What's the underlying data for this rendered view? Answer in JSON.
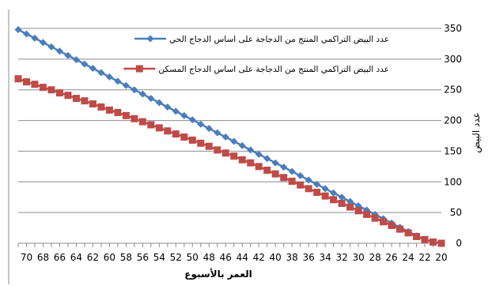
{
  "chart_data": {
    "type": "line",
    "xlabel": "العمر بالأسبوع",
    "ylabel": "عدد البيض",
    "x_axis_reversed": true,
    "y_axis_side": "right",
    "ylim": [
      0,
      350
    ],
    "yticks": [
      0,
      50,
      100,
      150,
      200,
      250,
      300,
      350
    ],
    "xlim": [
      20,
      71
    ],
    "xticks": [
      20,
      22,
      24,
      26,
      28,
      30,
      32,
      34,
      36,
      38,
      40,
      42,
      44,
      46,
      48,
      50,
      52,
      54,
      56,
      58,
      60,
      62,
      64,
      66,
      68,
      70
    ],
    "grid": "horizontal",
    "legend_position": "top-left",
    "x": [
      20,
      21,
      22,
      23,
      24,
      25,
      26,
      27,
      28,
      29,
      30,
      31,
      32,
      33,
      34,
      35,
      36,
      37,
      38,
      39,
      40,
      41,
      42,
      43,
      44,
      45,
      46,
      47,
      48,
      49,
      50,
      51,
      52,
      53,
      54,
      55,
      56,
      57,
      58,
      59,
      60,
      61,
      62,
      63,
      64,
      65,
      66,
      67,
      68,
      69,
      70,
      71
    ],
    "series": [
      {
        "name": "عدد البيض التراكمي المنتج من الدجاجة على اساس الدجاج الحي",
        "color": "#4A7EBB",
        "marker": "diamond",
        "values": [
          0,
          2,
          6,
          12,
          19,
          26,
          33,
          40,
          47,
          54,
          61,
          68,
          75,
          82,
          89,
          96,
          103,
          110,
          117,
          124,
          131,
          138,
          145,
          152,
          159,
          166,
          173,
          180,
          187,
          194,
          201,
          208,
          215,
          222,
          229,
          236,
          243,
          250,
          257,
          264,
          271,
          278,
          285,
          292,
          299,
          306,
          313,
          320,
          327,
          334,
          341,
          348
        ]
      },
      {
        "name": "عدد البيض التراكمي المنتج من الدجاجة على اساس الدجاج المسكن",
        "color": "#BE4B48",
        "marker": "square",
        "values": [
          0,
          2,
          6,
          11,
          17,
          23,
          29,
          35,
          41,
          47,
          53,
          59,
          65,
          71,
          77,
          83,
          89,
          95,
          101,
          107,
          113,
          119,
          125,
          131,
          136,
          142,
          147,
          152,
          158,
          163,
          168,
          173,
          178,
          183,
          188,
          193,
          198,
          203,
          208,
          213,
          217,
          222,
          227,
          232,
          236,
          241,
          245,
          250,
          254,
          259,
          263,
          268
        ]
      }
    ]
  }
}
